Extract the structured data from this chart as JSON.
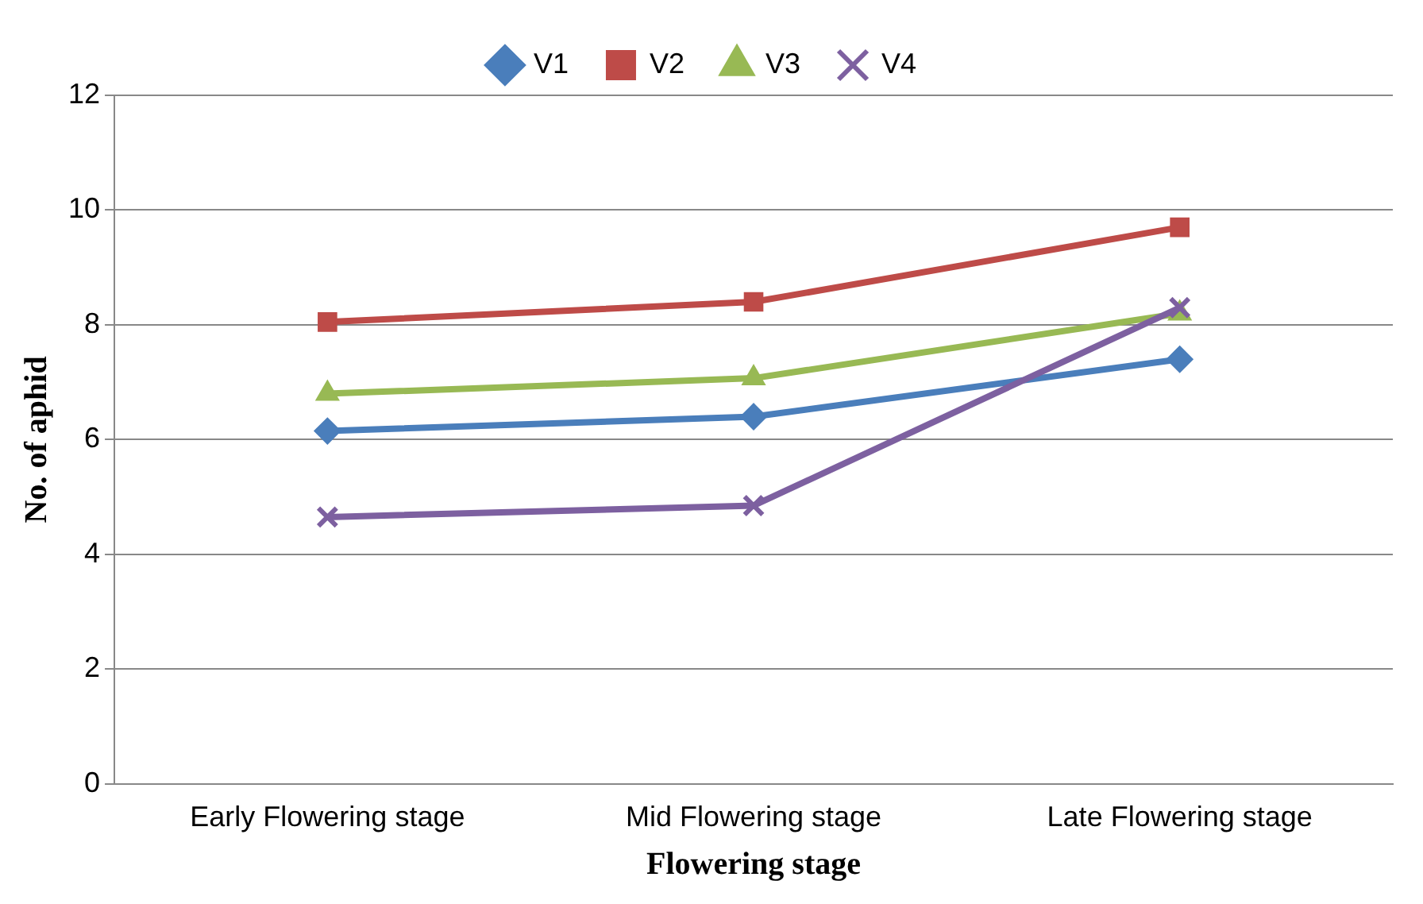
{
  "chart_data": {
    "type": "line",
    "xlabel": "Flowering stage",
    "ylabel": "No. of aphid",
    "categories": [
      "Early Flowering stage",
      "Mid Flowering stage",
      "Late Flowering stage"
    ],
    "series": [
      {
        "name": "V1",
        "color": "#4a7ebb",
        "marker": "diamond",
        "values": [
          6.15,
          6.4,
          7.4
        ]
      },
      {
        "name": "V2",
        "color": "#be4b48",
        "marker": "square",
        "values": [
          8.05,
          8.4,
          9.7
        ]
      },
      {
        "name": "V3",
        "color": "#98b954",
        "marker": "triangle",
        "values": [
          6.8,
          7.07,
          8.2
        ]
      },
      {
        "name": "V4",
        "color": "#7d60a0",
        "marker": "cross",
        "values": [
          4.65,
          4.85,
          8.3
        ]
      }
    ],
    "ylim": [
      0,
      12
    ],
    "yticks": [
      0,
      2,
      4,
      6,
      8,
      10,
      12
    ],
    "grid": "y",
    "legend": "top",
    "line_style": "solid"
  }
}
